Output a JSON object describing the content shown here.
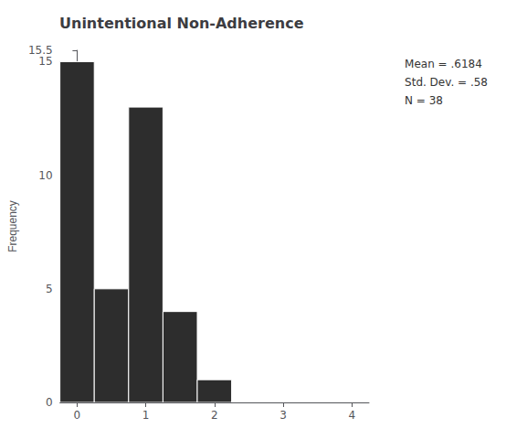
{
  "chart_data": {
    "type": "histogram",
    "title": "Unintentional Non-Adherence",
    "ylabel": "Frequency",
    "bins": [
      -0.25,
      0.25,
      0.75,
      1.25,
      1.75,
      2.25
    ],
    "values": [
      15,
      5,
      13,
      4,
      1
    ],
    "color": "#2d2d2d",
    "xlim": [
      -0.25,
      4.25
    ],
    "xticks": [
      0,
      1,
      2,
      3,
      4
    ],
    "ylim": [
      0,
      15.5
    ],
    "yticks": [
      0,
      5,
      10,
      15
    ],
    "grid": false,
    "annotation": "Mean = .6184\nStd. Dev. = .58\nN = 38"
  }
}
